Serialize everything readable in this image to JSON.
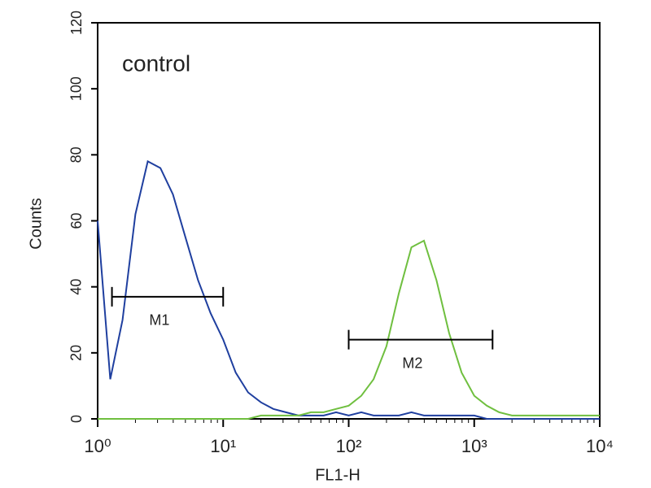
{
  "chart_data": {
    "type": "line",
    "xscale": "log",
    "annotation": "control",
    "xlabel": "FL1-H",
    "ylabel": "Counts",
    "x": [
      1,
      1.26,
      1.58,
      2,
      2.51,
      3.16,
      3.98,
      5.01,
      6.31,
      7.94,
      10,
      12.6,
      15.8,
      20,
      25.1,
      31.6,
      39.8,
      50.1,
      63.1,
      79.4,
      100,
      126,
      158,
      200,
      251,
      316,
      398,
      501,
      631,
      794,
      1000,
      1260,
      1580,
      2000,
      2510,
      3160,
      3980,
      5010,
      6310,
      7940,
      10000
    ],
    "series": [
      {
        "color": "#1f3f9f",
        "values": [
          60,
          12,
          30,
          62,
          78,
          76,
          68,
          55,
          42,
          32,
          24,
          14,
          8,
          5,
          3,
          2,
          1,
          1,
          1,
          2,
          1,
          2,
          1,
          1,
          1,
          2,
          1,
          1,
          1,
          1,
          1,
          0,
          0,
          0,
          0,
          0,
          0,
          0,
          0,
          0,
          0
        ]
      },
      {
        "color": "#6fbf3f",
        "values": [
          0,
          0,
          0,
          0,
          0,
          0,
          0,
          0,
          0,
          0,
          0,
          0,
          0,
          1,
          1,
          1,
          1,
          2,
          2,
          3,
          4,
          7,
          12,
          22,
          38,
          52,
          54,
          42,
          26,
          14,
          7,
          4,
          2,
          1,
          1,
          1,
          1,
          1,
          1,
          1,
          1
        ]
      }
    ],
    "markers": [
      {
        "label": "M1",
        "x": [
          1.3,
          10
        ],
        "y": 37
      },
      {
        "label": "M2",
        "x": [
          100,
          1400
        ],
        "y": 24
      }
    ],
    "xlim": [
      1,
      10000
    ],
    "xticks": [
      {
        "value": 1,
        "label": "10⁰"
      },
      {
        "value": 10,
        "label": "10¹"
      },
      {
        "value": 100,
        "label": "10²"
      },
      {
        "value": 1000,
        "label": "10³"
      },
      {
        "value": 10000,
        "label": "10⁴"
      }
    ],
    "ylim": [
      0,
      120
    ],
    "yticks": [
      0,
      20,
      40,
      60,
      80,
      100,
      120
    ]
  }
}
